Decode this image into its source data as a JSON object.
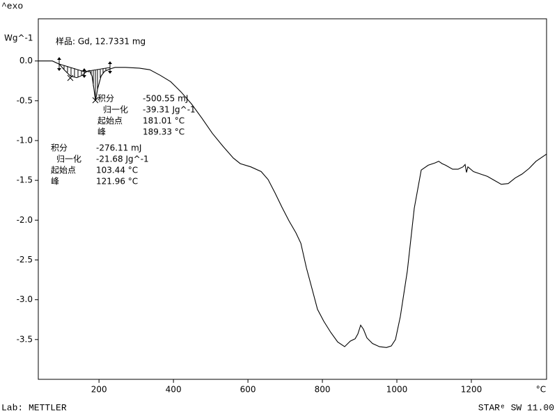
{
  "chart_data": {
    "type": "line",
    "exo": "^exo",
    "ylabel": "Wg^-1",
    "xlabel": "°C",
    "sample": "样品: Gd, 12.7331 mg",
    "footer_left": "Lab: METTLER",
    "footer_right": "STARᵉ SW 11.00",
    "xlim": [
      37,
      1402
    ],
    "ylim": [
      -4.0,
      0.53
    ],
    "xticks": [
      200,
      400,
      600,
      800,
      1000,
      1200
    ],
    "yticks": [
      {
        "value": 0,
        "label": "0.0"
      },
      -0.5,
      {
        "value": -1,
        "label": "-1.0"
      },
      -1.5,
      {
        "value": -2,
        "label": "-2.0"
      },
      -2.5,
      {
        "value": -3,
        "label": "-3.0"
      },
      -3.5
    ],
    "series": [
      {
        "color": "#000000",
        "x": [
          37.4,
          74.8,
          93.5,
          106.5,
          123.4,
          140.2,
          155.1,
          164.5,
          173.8,
          181.3,
          186.9,
          190.7,
          196.3,
          205.6,
          215.0,
          229.9,
          243.0,
          271.0,
          308.4,
          336.4,
          364.5,
          392.5,
          420.6,
          448.6,
          476.6,
          504.7,
          532.7,
          560.7,
          579.4,
          607.5,
          635.5,
          654.2,
          672.9,
          691.6,
          710.3,
          729.0,
          742.1,
          757.0,
          772.0,
          786.9,
          803.7,
          822.4,
          841.1,
          859.8,
          874.8,
          887.9,
          895.3,
          902.8,
          910.3,
          919.6,
          934.6,
          953.3,
          972.0,
          985.0,
          996.3,
          1009.3,
          1028.0,
          1046.7,
          1065.4,
          1084.1,
          1102.8,
          1112.1,
          1121.5,
          1130.8,
          1149.5,
          1164.5,
          1177.6,
          1183.2,
          1186.9,
          1190.7,
          1205.6,
          1224.3,
          1243.0,
          1261.7,
          1280.4,
          1299.1,
          1317.8,
          1336.4,
          1355.1,
          1373.8,
          1401.9
        ],
        "values": [
          0,
          0,
          -0.04,
          -0.11,
          -0.19,
          -0.21,
          -0.18,
          -0.14,
          -0.12,
          -0.19,
          -0.37,
          -0.5,
          -0.35,
          -0.19,
          -0.13,
          -0.1,
          -0.08,
          -0.08,
          -0.09,
          -0.11,
          -0.18,
          -0.26,
          -0.39,
          -0.54,
          -0.72,
          -0.91,
          -1.07,
          -1.22,
          -1.29,
          -1.33,
          -1.39,
          -1.49,
          -1.66,
          -1.84,
          -2.01,
          -2.16,
          -2.29,
          -2.6,
          -2.86,
          -3.12,
          -3.27,
          -3.41,
          -3.53,
          -3.59,
          -3.52,
          -3.49,
          -3.43,
          -3.32,
          -3.37,
          -3.48,
          -3.55,
          -3.59,
          -3.6,
          -3.58,
          -3.5,
          -3.21,
          -2.64,
          -1.85,
          -1.37,
          -1.31,
          -1.28,
          -1.26,
          -1.29,
          -1.31,
          -1.36,
          -1.36,
          -1.33,
          -1.3,
          -1.4,
          -1.33,
          -1.39,
          -1.42,
          -1.45,
          -1.5,
          -1.55,
          -1.54,
          -1.47,
          -1.42,
          -1.35,
          -1.26,
          -1.17
        ]
      }
    ],
    "annotations": [
      {
        "rows": [
          {
            "label": "积分",
            "value": "-500.55 mJ"
          },
          {
            "label": "归一化",
            "value": "-39.31 Jg^-1"
          },
          {
            "label": "起始点",
            "value": "181.01 °C"
          },
          {
            "label": "峰",
            "value": "189.33 °C"
          }
        ]
      },
      {
        "rows": [
          {
            "label": "积分",
            "value": "-276.11 mJ"
          },
          {
            "label": "归一化",
            "value": "-21.68 Jg^-1"
          },
          {
            "label": "起始点",
            "value": "103.44 °C"
          },
          {
            "label": "峰",
            "value": "121.96 °C"
          }
        ]
      }
    ]
  }
}
